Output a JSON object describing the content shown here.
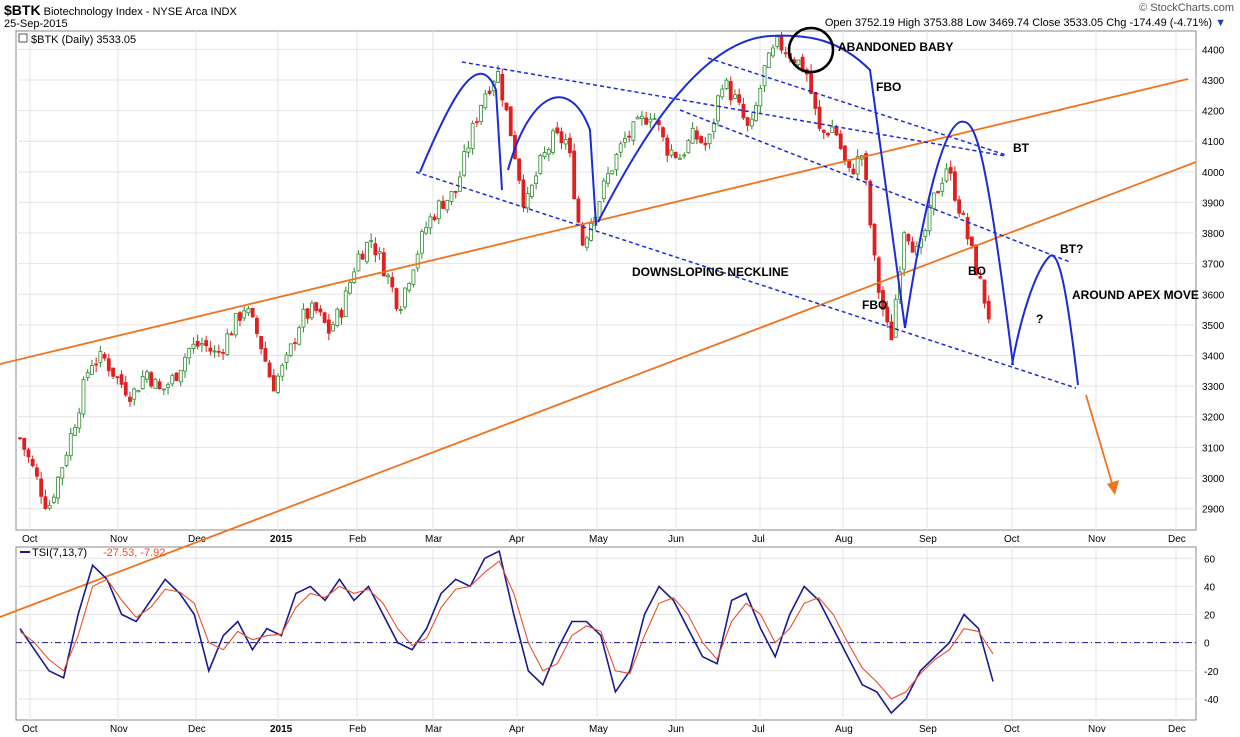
{
  "header": {
    "symbol": "$BTK",
    "name": "Biotechnology Index - NYSE Arca INDX",
    "date": "25-Sep-2015",
    "ohlc": "Open 3752.19  High 3753.88  Low 3469.74  Close 3533.05  Chg -174.49 (-4.71%)",
    "arrow": "▼",
    "credit": "© StockCharts.com"
  },
  "price_legend": "$BTK (Daily) 3533.05",
  "tsi_legend_name": "TSI(7,13,7)",
  "tsi_legend_values": "-27.53, -7.92",
  "chart_data": [
    {
      "type": "candlestick",
      "title": "$BTK (Daily) 3533.05",
      "x_labels": [
        "Oct",
        "Nov",
        "Dec",
        "2015",
        "Feb",
        "Mar",
        "Apr",
        "May",
        "Jun",
        "Jul",
        "Aug",
        "Sep",
        "Oct",
        "Nov",
        "Dec"
      ],
      "y_ticks": [
        2900,
        3000,
        3100,
        3200,
        3300,
        3400,
        3500,
        3600,
        3700,
        3800,
        3900,
        4000,
        4100,
        4200,
        4300,
        4400
      ],
      "ylim": [
        2830,
        4460
      ],
      "close_path": [
        3130,
        3020,
        2900,
        3040,
        3200,
        3380,
        3390,
        3320,
        3270,
        3350,
        3280,
        3330,
        3420,
        3440,
        3400,
        3480,
        3560,
        3460,
        3300,
        3380,
        3520,
        3550,
        3480,
        3560,
        3720,
        3780,
        3680,
        3560,
        3700,
        3830,
        3900,
        3930,
        4100,
        4250,
        4330,
        4120,
        3880,
        4020,
        4110,
        4100,
        3760,
        3880,
        4000,
        4100,
        4150,
        4200,
        4080,
        4050,
        4120,
        4080,
        4300,
        4230,
        4120,
        4330,
        4420,
        4380,
        4330,
        4120,
        4150,
        3990,
        4060,
        3650,
        3440,
        3830,
        3720,
        3900,
        4020,
        3870,
        3700,
        3533
      ],
      "annotations": [
        "ABANDONED BABY",
        "FBO",
        "BT",
        "DOWNSLOPING NECKLINE",
        "FBO",
        "BO",
        "BT?",
        "?",
        "AROUND APEX MOVE"
      ]
    },
    {
      "type": "line",
      "title": "TSI(7,13,7) -27.53, -7.92",
      "y_ticks": [
        -40,
        -20,
        0,
        20,
        40,
        60
      ],
      "ylim": [
        -55,
        68
      ],
      "series": [
        {
          "name": "TSI",
          "values": [
            10,
            -5,
            -20,
            -25,
            20,
            55,
            45,
            20,
            15,
            30,
            45,
            35,
            20,
            -20,
            5,
            15,
            -5,
            10,
            5,
            35,
            40,
            30,
            45,
            30,
            40,
            20,
            0,
            -5,
            10,
            35,
            45,
            40,
            60,
            65,
            20,
            -20,
            -30,
            -5,
            15,
            15,
            5,
            -35,
            -20,
            20,
            40,
            30,
            10,
            -10,
            -15,
            30,
            35,
            10,
            -10,
            20,
            40,
            30,
            10,
            -10,
            -30,
            -35,
            -50,
            -40,
            -20,
            -10,
            0,
            20,
            10,
            -27.53
          ]
        },
        {
          "name": "Signal",
          "values": [
            8,
            0,
            -12,
            -20,
            5,
            40,
            45,
            30,
            18,
            25,
            38,
            36,
            28,
            0,
            -5,
            8,
            2,
            5,
            6,
            25,
            35,
            32,
            40,
            35,
            38,
            28,
            10,
            -2,
            3,
            25,
            38,
            40,
            50,
            58,
            35,
            0,
            -20,
            -15,
            5,
            12,
            8,
            -20,
            -22,
            5,
            28,
            32,
            20,
            0,
            -12,
            15,
            28,
            20,
            0,
            10,
            28,
            32,
            20,
            0,
            -18,
            -28,
            -40,
            -35,
            -22,
            -12,
            -5,
            10,
            8,
            -7.92
          ]
        }
      ]
    }
  ],
  "colors": {
    "up": "#2e8b2e",
    "down": "#e02020",
    "trend": "#f0731e",
    "arc": "#1d2bd6",
    "tsi": "#1a1a8c",
    "signal": "#e8502a"
  }
}
